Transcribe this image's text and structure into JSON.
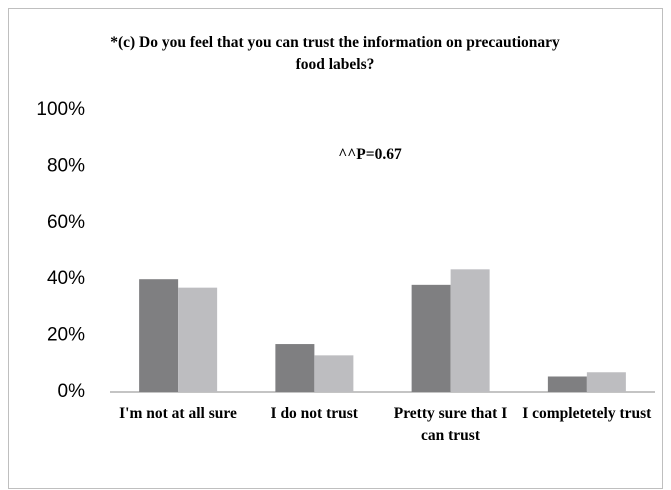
{
  "chart_data": {
    "type": "bar",
    "title": "*(c) Do you feel that you can trust the information on precautionary food labels?",
    "annotation": "^^P=0.67",
    "categories": [
      "I'm not at all sure",
      "I do not trust",
      "Pretty sure that I can trust",
      "I completetely trust"
    ],
    "series": [
      {
        "color": "#7f7f81",
        "values": [
          40,
          17,
          38,
          5.5
        ]
      },
      {
        "color": "#bdbdc0",
        "values": [
          37,
          13,
          43.5,
          7
        ]
      }
    ],
    "ylim": [
      0,
      100
    ],
    "yticks": [
      {
        "value": 0,
        "label": "0%"
      },
      {
        "value": 20,
        "label": "20%"
      },
      {
        "value": 40,
        "label": "40%"
      },
      {
        "value": 60,
        "label": "60%"
      },
      {
        "value": 80,
        "label": "80%"
      },
      {
        "value": 100,
        "label": "100%"
      }
    ],
    "grid": false
  }
}
